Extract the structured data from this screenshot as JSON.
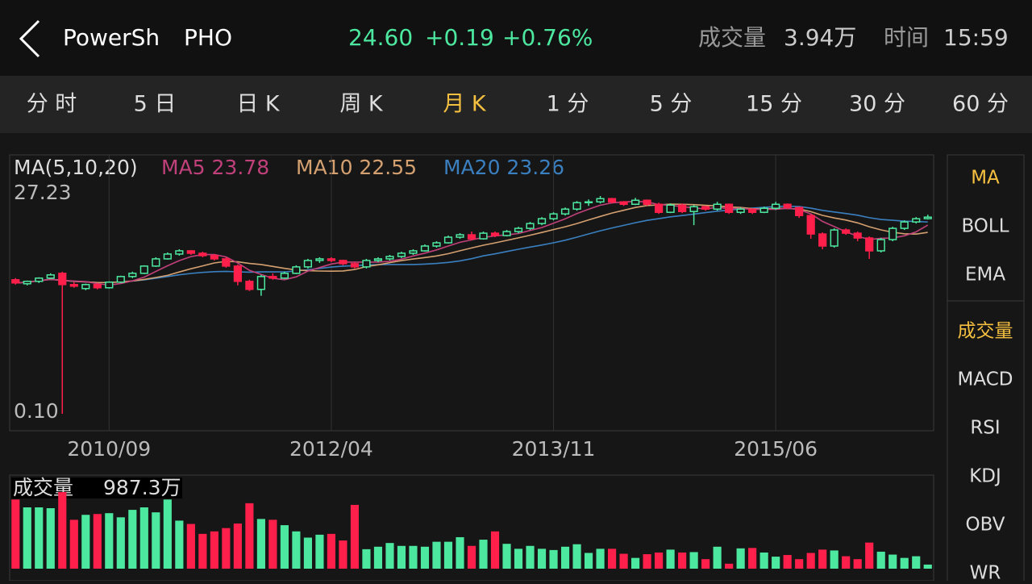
{
  "header": {
    "name": "PowerSh",
    "symbol": "PHO",
    "price": "24.60",
    "change": "+0.19",
    "change_pct": "+0.76%",
    "volume_label": "成交量",
    "volume": "3.94万",
    "time_label": "时间",
    "time": "15:59"
  },
  "tabs": {
    "items": [
      "分 时",
      "5 日",
      "日 K",
      "周 K",
      "月 K",
      "1 分",
      "5 分",
      "15 分",
      "30 分",
      "60 分"
    ],
    "active": 4
  },
  "chart": {
    "legend": {
      "title": "MA(5,10,20)",
      "ma5": "MA5 23.78",
      "ma10": "MA10 22.55",
      "ma20": "MA20 23.26"
    },
    "price_max": {
      "value": 27.23,
      "label": "27.23"
    },
    "price_min": {
      "value": 0.1,
      "label": "0.10"
    },
    "x_labels": [
      {
        "value": 8,
        "label": "2010/09"
      },
      {
        "value": 27,
        "label": "2012/04"
      },
      {
        "value": 46,
        "label": "2013/11"
      },
      {
        "value": 65,
        "label": "2015/06"
      }
    ],
    "candles": [
      [
        16.8,
        17.0,
        16.2,
        16.4
      ],
      [
        16.3,
        16.7,
        16.1,
        16.6
      ],
      [
        16.6,
        17.1,
        16.4,
        17.0
      ],
      [
        17.0,
        17.6,
        16.9,
        17.4
      ],
      [
        17.6,
        17.8,
        0.1,
        16.2
      ],
      [
        16.2,
        16.5,
        15.8,
        16.0
      ],
      [
        15.7,
        16.3,
        15.5,
        16.2
      ],
      [
        16.2,
        16.4,
        15.6,
        15.8
      ],
      [
        15.8,
        16.6,
        15.7,
        16.5
      ],
      [
        16.5,
        17.3,
        16.4,
        17.2
      ],
      [
        17.2,
        17.8,
        17.0,
        17.6
      ],
      [
        17.6,
        18.6,
        17.5,
        18.5
      ],
      [
        18.5,
        19.6,
        18.4,
        19.4
      ],
      [
        19.4,
        20.2,
        19.3,
        20.0
      ],
      [
        20.0,
        20.6,
        19.8,
        20.4
      ],
      [
        20.4,
        20.5,
        19.9,
        20.1
      ],
      [
        20.1,
        20.3,
        19.6,
        19.8
      ],
      [
        19.8,
        20.0,
        19.2,
        19.4
      ],
      [
        19.4,
        19.6,
        18.3,
        18.5
      ],
      [
        18.5,
        18.7,
        16.1,
        16.6
      ],
      [
        16.6,
        16.8,
        15.4,
        15.6
      ],
      [
        15.6,
        17.4,
        14.8,
        17.2
      ],
      [
        17.2,
        17.6,
        16.8,
        17.0
      ],
      [
        17.0,
        17.8,
        16.9,
        17.6
      ],
      [
        17.6,
        18.6,
        17.5,
        18.4
      ],
      [
        18.4,
        19.4,
        18.2,
        19.2
      ],
      [
        19.2,
        19.6,
        18.9,
        19.4
      ],
      [
        19.4,
        19.6,
        19.0,
        19.2
      ],
      [
        19.2,
        19.3,
        18.6,
        18.8
      ],
      [
        18.8,
        19.0,
        18.2,
        18.4
      ],
      [
        18.4,
        19.4,
        18.2,
        19.2
      ],
      [
        19.2,
        19.6,
        19.0,
        19.4
      ],
      [
        19.4,
        19.9,
        19.2,
        19.7
      ],
      [
        19.7,
        20.3,
        19.5,
        20.1
      ],
      [
        20.1,
        20.6,
        19.9,
        20.4
      ],
      [
        20.4,
        21.2,
        20.3,
        21.0
      ],
      [
        21.0,
        21.6,
        20.8,
        21.4
      ],
      [
        21.4,
        22.3,
        21.3,
        22.1
      ],
      [
        22.1,
        22.6,
        21.9,
        22.4
      ],
      [
        22.4,
        22.8,
        21.7,
        21.9
      ],
      [
        21.9,
        22.8,
        21.8,
        22.6
      ],
      [
        22.6,
        22.8,
        22.1,
        22.3
      ],
      [
        22.3,
        23.0,
        22.2,
        22.8
      ],
      [
        22.8,
        23.4,
        22.6,
        23.2
      ],
      [
        23.2,
        24.0,
        23.0,
        23.8
      ],
      [
        23.8,
        24.6,
        23.6,
        24.4
      ],
      [
        24.4,
        25.2,
        24.2,
        25.0
      ],
      [
        25.0,
        25.8,
        24.8,
        25.6
      ],
      [
        25.6,
        26.6,
        25.4,
        26.4
      ],
      [
        26.4,
        26.8,
        26.0,
        26.5
      ],
      [
        26.5,
        27.23,
        26.3,
        26.9
      ],
      [
        26.9,
        27.0,
        26.3,
        26.5
      ],
      [
        26.5,
        26.6,
        26.0,
        26.2
      ],
      [
        26.2,
        27.0,
        26.1,
        26.7
      ],
      [
        26.7,
        26.8,
        26.0,
        26.2
      ],
      [
        26.2,
        26.4,
        25.0,
        25.2
      ],
      [
        25.2,
        26.3,
        25.1,
        26.1
      ],
      [
        26.1,
        26.3,
        25.1,
        25.3
      ],
      [
        25.3,
        26.1,
        23.6,
        25.9
      ],
      [
        25.9,
        26.0,
        25.4,
        25.6
      ],
      [
        25.6,
        26.5,
        25.4,
        26.2
      ],
      [
        26.2,
        26.3,
        25.0,
        25.2
      ],
      [
        25.2,
        25.8,
        25.0,
        25.6
      ],
      [
        25.6,
        25.7,
        25.0,
        25.2
      ],
      [
        25.2,
        25.9,
        25.1,
        25.7
      ],
      [
        25.7,
        26.5,
        25.5,
        26.2
      ],
      [
        26.2,
        26.3,
        25.6,
        25.8
      ],
      [
        25.8,
        25.9,
        24.5,
        24.8
      ],
      [
        24.8,
        24.9,
        21.9,
        22.5
      ],
      [
        22.5,
        22.7,
        20.6,
        21.0
      ],
      [
        21.0,
        23.2,
        20.8,
        23.0
      ],
      [
        23.0,
        23.2,
        22.4,
        22.6
      ],
      [
        22.6,
        22.8,
        21.6,
        22.0
      ],
      [
        22.0,
        22.2,
        19.4,
        20.4
      ],
      [
        20.4,
        22.0,
        20.2,
        21.8
      ],
      [
        21.8,
        23.4,
        21.6,
        23.2
      ],
      [
        23.2,
        24.2,
        23.0,
        24.0
      ],
      [
        24.0,
        24.6,
        23.8,
        24.4
      ],
      [
        24.41,
        24.9,
        24.3,
        24.6
      ]
    ],
    "volume_title": "成交量",
    "volume_value": "987.3万",
    "volumes": [
      16700,
      14800,
      14800,
      14600,
      18500,
      11800,
      13000,
      13200,
      13400,
      12400,
      14200,
      14800,
      13600,
      16700,
      11600,
      10800,
      8400,
      9000,
      9800,
      10900,
      15800,
      12000,
      11800,
      10500,
      9000,
      7500,
      8200,
      8400,
      6800,
      15400,
      4700,
      5300,
      6200,
      5500,
      5500,
      5300,
      6500,
      6500,
      7600,
      5500,
      7000,
      9000,
      6000,
      4800,
      5500,
      4800,
      4500,
      5300,
      5900,
      3800,
      4800,
      4800,
      3600,
      2600,
      3500,
      3900,
      4600,
      3900,
      4000,
      2300,
      5300,
      1200,
      4900,
      5000,
      3900,
      2900,
      3300,
      2300,
      3800,
      4600,
      4400,
      3000,
      2300,
      6300,
      4100,
      3400,
      2600,
      3000,
      987.3
    ]
  },
  "side_menu": {
    "overlays": [
      "MA",
      "BOLL",
      "EMA"
    ],
    "overlay_active": 0,
    "indicators": [
      "成交量",
      "MACD",
      "RSI",
      "KDJ",
      "OBV",
      "WR"
    ],
    "indicator_active": 0
  }
}
